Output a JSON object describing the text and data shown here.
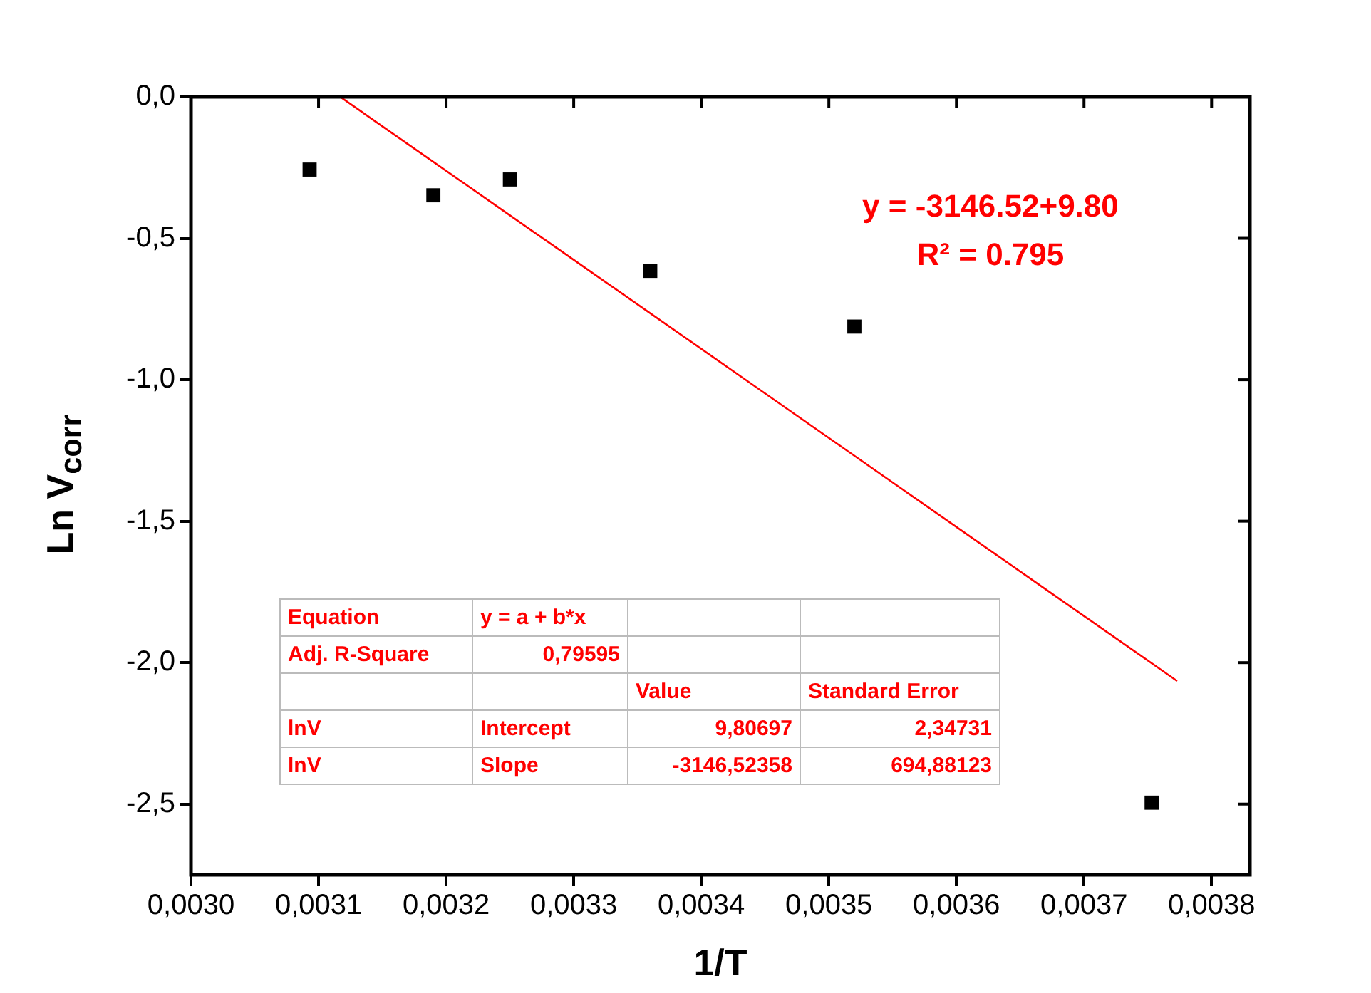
{
  "chart_data": {
    "type": "scatter",
    "xlabel": "1/T",
    "ylabel": "Ln V$_{corr}$",
    "xlim": [
      0.003,
      0.00383
    ],
    "ylim": [
      -2.75,
      0
    ],
    "xticks": [
      {
        "value": 0.003,
        "label": "0,0030"
      },
      {
        "value": 0.0031,
        "label": "0,0031"
      },
      {
        "value": 0.0032,
        "label": "0,0032"
      },
      {
        "value": 0.0033,
        "label": "0,0033"
      },
      {
        "value": 0.0034,
        "label": "0,0034"
      },
      {
        "value": 0.0035,
        "label": "0,0035"
      },
      {
        "value": 0.0036,
        "label": "0,0036"
      },
      {
        "value": 0.0037,
        "label": "0,0037"
      },
      {
        "value": 0.0038,
        "label": "0,0038"
      }
    ],
    "yticks": [
      {
        "value": 0,
        "label": "0,0"
      },
      {
        "value": -0.5,
        "label": "-0,5"
      },
      {
        "value": -1,
        "label": "-1,0"
      },
      {
        "value": -1.5,
        "label": "-1,5"
      },
      {
        "value": -2,
        "label": "-2,0"
      },
      {
        "value": -2.5,
        "label": "-2,5"
      }
    ],
    "grid": false,
    "legend": false,
    "marker": "square",
    "series": [
      {
        "type": "scatter",
        "color": "#000000",
        "x": [
          0.003093,
          0.00319,
          0.00325,
          0.00336,
          0.00352,
          0.003753
        ],
        "values": [
          -0.257,
          -0.348,
          -0.292,
          -0.615,
          -0.812,
          -2.495
        ]
      },
      {
        "type": "line",
        "color": "#ff0000",
        "marker": "none",
        "x": [
          0.003117,
          0.003773
        ],
        "values": [
          0,
          -2.065
        ]
      }
    ],
    "annotations": [
      "y = -3146.52+9.80",
      "R² = 0.795",
      "Equation",
      "y = a + b*x",
      "Adj. R-Square",
      "0,79595",
      "Value",
      "Standard Error",
      "lnV",
      "Intercept",
      "9,80697",
      "2,34731",
      "lnV",
      "Slope",
      "-3146,52358",
      "694,88123"
    ]
  }
}
